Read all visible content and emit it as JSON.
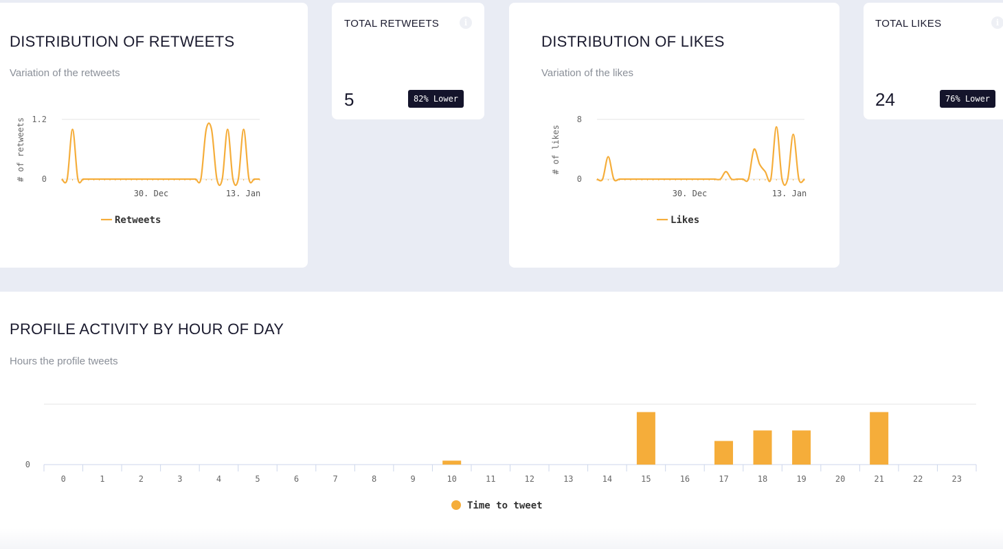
{
  "colors": {
    "accent": "#f5ad3a",
    "badge_bg": "#14142b",
    "page_bg": "#e9ecf4"
  },
  "retweets_card": {
    "title": "DISTRIBUTION OF RETWEETS",
    "subtitle": "Variation of the retweets"
  },
  "total_retweets": {
    "title": "TOTAL RETWEETS",
    "value": "5",
    "badge": "82% Lower",
    "icon": "info-icon"
  },
  "likes_card": {
    "title": "DISTRIBUTION OF LIKES",
    "subtitle": "Variation of the likes"
  },
  "total_likes": {
    "title": "TOTAL LIKES",
    "value": "24",
    "badge": "76% Lower",
    "icon": "info-icon"
  },
  "activity_card": {
    "title": "PROFILE ACTIVITY BY HOUR OF DAY",
    "subtitle": "Hours the profile tweets"
  },
  "chart_data": [
    {
      "type": "line",
      "id": "retweets",
      "ylabel": "# of retweets",
      "yticks": [
        "0",
        "1.2"
      ],
      "ylim": [
        0,
        1.2
      ],
      "xtick_labels": [
        "30. Dec",
        "13. Jan"
      ],
      "series": [
        {
          "name": "Retweets",
          "values": [
            0,
            0,
            1,
            0,
            0,
            0,
            0,
            0,
            0,
            0,
            0,
            0,
            0,
            0,
            0,
            0,
            0,
            0,
            0,
            0,
            0,
            0,
            0,
            0,
            0,
            0,
            0,
            1,
            1,
            0,
            0,
            1,
            0,
            0,
            1,
            0,
            0,
            0
          ]
        }
      ],
      "grid": "horizontal",
      "legend": "bottom-center"
    },
    {
      "type": "line",
      "id": "likes",
      "ylabel": "# of likes",
      "yticks": [
        "0",
        "8"
      ],
      "ylim": [
        0,
        8
      ],
      "xtick_labels": [
        "30. Dec",
        "13. Jan"
      ],
      "series": [
        {
          "name": "Likes",
          "values": [
            0,
            0,
            3,
            0,
            0,
            0,
            0,
            0,
            0,
            0,
            0,
            0,
            0,
            0,
            0,
            0,
            0,
            0,
            0,
            0,
            0,
            0,
            0,
            1,
            0,
            0,
            0,
            0,
            4,
            2,
            1,
            0,
            7,
            0,
            0,
            6,
            0,
            0
          ]
        }
      ],
      "grid": "horizontal",
      "legend": "bottom-center"
    },
    {
      "type": "bar",
      "id": "activity",
      "categories": [
        "0",
        "1",
        "2",
        "3",
        "4",
        "5",
        "6",
        "7",
        "8",
        "9",
        "10",
        "11",
        "12",
        "13",
        "14",
        "15",
        "16",
        "17",
        "18",
        "19",
        "20",
        "21",
        "22",
        "23"
      ],
      "yticks": [
        "0"
      ],
      "ylim": [
        0,
        4.6
      ],
      "series": [
        {
          "name": "Time to tweet",
          "values": [
            0,
            0,
            0,
            0,
            0,
            0,
            0,
            0,
            0,
            0,
            0.3,
            0,
            0,
            0,
            0,
            4,
            0,
            1.8,
            2.6,
            2.6,
            0,
            4,
            0,
            0
          ]
        }
      ],
      "grid": "horizontal",
      "legend": "bottom-center"
    }
  ]
}
